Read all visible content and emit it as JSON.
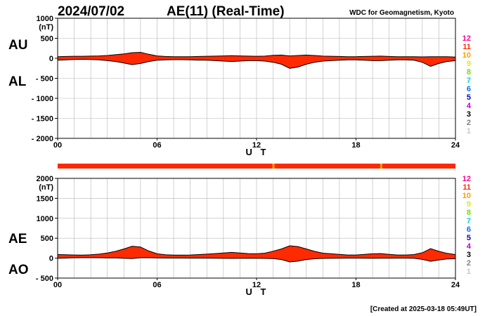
{
  "header": {
    "date": "2024/07/02",
    "title": "AE(11) (Real-Time)",
    "source": "WDC for Geomagnetism, Kyoto"
  },
  "footer": {
    "created": "[Created at 2025-03-18 05:49UT]"
  },
  "colors": {
    "fill": "#ff2a00",
    "line": "#000000",
    "grid": "#b4b4b4",
    "status_bar": "#ff2a00",
    "status_mark": "#ffa000"
  },
  "chart_data": [
    {
      "type": "area",
      "name": "AU/AL panel",
      "panel_labels": [
        "AU",
        "AL"
      ],
      "ylabel": "(nT)",
      "ylim": [
        -2000,
        1000
      ],
      "yticks": [
        1000,
        500,
        0,
        -500,
        -1000,
        -1500,
        -2000
      ],
      "ytick_labels": [
        "1000",
        "500",
        "0",
        "- 500",
        "- 1000",
        "- 1500",
        "- 2000"
      ],
      "xlabel": "U T",
      "xlim": [
        0,
        24
      ],
      "xticks": [
        0,
        6,
        12,
        18,
        24
      ],
      "xtick_labels": [
        "00",
        "06",
        "12",
        "18",
        "24"
      ],
      "grid": true,
      "x": [
        0,
        0.5,
        1,
        1.5,
        2,
        2.5,
        3,
        3.5,
        4,
        4.5,
        5,
        5.5,
        6,
        6.5,
        7,
        7.5,
        8,
        8.5,
        9,
        9.5,
        10,
        10.5,
        11,
        11.5,
        12,
        12.5,
        13,
        13.5,
        14,
        14.5,
        15,
        15.5,
        16,
        16.5,
        17,
        17.5,
        18,
        18.5,
        19,
        19.5,
        20,
        20.5,
        21,
        21.5,
        22,
        22.5,
        23,
        23.5,
        24
      ],
      "series": [
        {
          "name": "AU",
          "values": [
            40,
            45,
            50,
            50,
            55,
            60,
            70,
            90,
            110,
            140,
            150,
            100,
            60,
            45,
            40,
            40,
            40,
            45,
            50,
            55,
            60,
            65,
            60,
            55,
            50,
            55,
            75,
            80,
            60,
            70,
            80,
            70,
            55,
            50,
            45,
            40,
            40,
            45,
            50,
            55,
            45,
            40,
            40,
            40,
            35,
            40,
            40,
            40,
            30
          ]
        },
        {
          "name": "AL",
          "values": [
            -50,
            -40,
            -30,
            -25,
            -30,
            -40,
            -60,
            -80,
            -120,
            -160,
            -130,
            -80,
            -50,
            -40,
            -35,
            -35,
            -40,
            -45,
            -50,
            -60,
            -70,
            -80,
            -70,
            -60,
            -60,
            -70,
            -100,
            -150,
            -250,
            -220,
            -150,
            -100,
            -70,
            -60,
            -50,
            -40,
            -40,
            -50,
            -60,
            -60,
            -50,
            -40,
            -40,
            -50,
            -100,
            -200,
            -130,
            -80,
            -60
          ]
        }
      ]
    },
    {
      "type": "area",
      "name": "AE/AO panel",
      "panel_labels": [
        "AE",
        "AO"
      ],
      "ylabel": "(nT)",
      "ylim": [
        -500,
        2000
      ],
      "yticks": [
        2000,
        1500,
        1000,
        500,
        0,
        -500
      ],
      "ytick_labels": [
        "2000",
        "1500",
        "1000",
        "500",
        "0",
        "- 500"
      ],
      "xlabel": "U T",
      "xlim": [
        0,
        24
      ],
      "xticks": [
        0,
        6,
        12,
        18,
        24
      ],
      "xtick_labels": [
        "00",
        "06",
        "12",
        "18",
        "24"
      ],
      "grid": true,
      "x": [
        0,
        0.5,
        1,
        1.5,
        2,
        2.5,
        3,
        3.5,
        4,
        4.5,
        5,
        5.5,
        6,
        6.5,
        7,
        7.5,
        8,
        8.5,
        9,
        9.5,
        10,
        10.5,
        11,
        11.5,
        12,
        12.5,
        13,
        13.5,
        14,
        14.5,
        15,
        15.5,
        16,
        16.5,
        17,
        17.5,
        18,
        18.5,
        19,
        19.5,
        20,
        20.5,
        21,
        21.5,
        22,
        22.5,
        23,
        23.5,
        24
      ],
      "series": [
        {
          "name": "AE",
          "values": [
            90,
            85,
            80,
            75,
            85,
            100,
            130,
            170,
            230,
            300,
            280,
            180,
            110,
            85,
            75,
            75,
            80,
            90,
            100,
            115,
            130,
            145,
            130,
            115,
            110,
            125,
            175,
            230,
            310,
            290,
            230,
            170,
            125,
            110,
            95,
            80,
            80,
            95,
            110,
            115,
            95,
            80,
            80,
            90,
            135,
            240,
            170,
            120,
            90
          ]
        },
        {
          "name": "AO",
          "values": [
            -5,
            2,
            10,
            12,
            12,
            10,
            5,
            5,
            -5,
            -10,
            10,
            10,
            5,
            2,
            2,
            2,
            0,
            0,
            0,
            -2,
            -5,
            -7,
            -5,
            -2,
            -5,
            -7,
            -12,
            -35,
            -95,
            -75,
            -35,
            -15,
            -7,
            -5,
            -2,
            0,
            0,
            -2,
            -5,
            -2,
            -2,
            0,
            0,
            -5,
            -32,
            -80,
            -45,
            -20,
            -15
          ]
        }
      ]
    }
  ],
  "status_bar": {
    "marks_ut": [
      13,
      19.5
    ]
  },
  "activity_scale": {
    "levels": [
      "12",
      "11",
      "10",
      "9",
      "8",
      "7",
      "6",
      "5",
      "4",
      "3",
      "2",
      "1"
    ],
    "colors": [
      "#ff0090",
      "#ff2a00",
      "#ffa000",
      "#e8e800",
      "#70e000",
      "#00d0d0",
      "#0070ff",
      "#0000cc",
      "#c000c0",
      "#000000",
      "#808080",
      "#c8c8c8"
    ]
  }
}
